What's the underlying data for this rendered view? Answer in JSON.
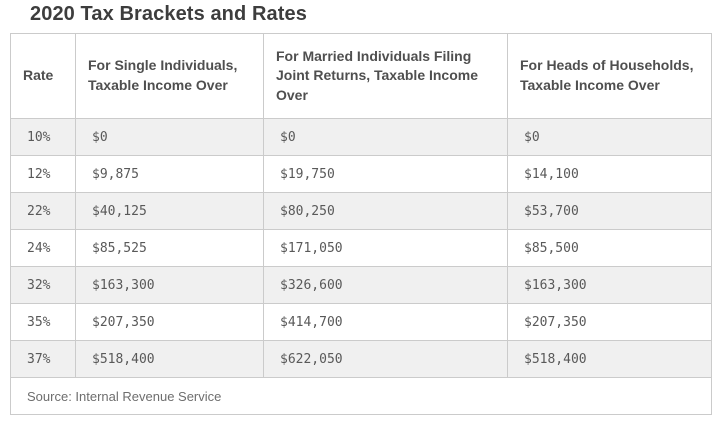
{
  "page": {
    "title": "2020 Tax Brackets and Rates"
  },
  "chart_data": {
    "type": "table",
    "title": "2020 Tax Brackets and Rates",
    "columns": [
      "Rate",
      "For Single Individuals, Taxable Income Over",
      "For Married Individuals Filing Joint Returns, Taxable Income Over",
      "For Heads of Households, Taxable Income Over"
    ],
    "rows": [
      [
        "10%",
        "$0",
        "$0",
        "$0"
      ],
      [
        "12%",
        "$9,875",
        "$19,750",
        "$14,100"
      ],
      [
        "22%",
        "$40,125",
        "$80,250",
        "$53,700"
      ],
      [
        "24%",
        "$85,525",
        "$171,050",
        "$85,500"
      ],
      [
        "32%",
        "$163,300",
        "$326,600",
        "$163,300"
      ],
      [
        "35%",
        "$207,350",
        "$414,700",
        "$207,350"
      ],
      [
        "37%",
        "$518,400",
        "$622,050",
        "$518,400"
      ]
    ],
    "source": "Source: Internal Revenue Service"
  },
  "colors": {
    "title_text": "#3d3d3d",
    "header_text": "#4f4f4f",
    "cell_text": "#595959",
    "source_text": "#6e6e6e",
    "row_stripe": "#f0f0f0",
    "border": "#cbcbcb",
    "background": "#ffffff"
  }
}
